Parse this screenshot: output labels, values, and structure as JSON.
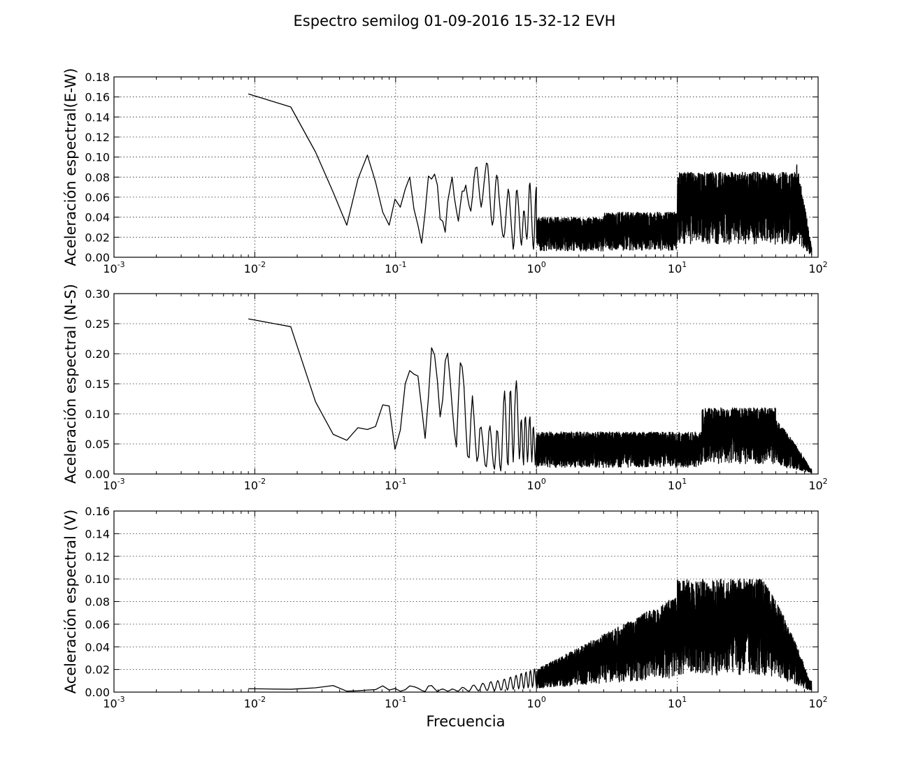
{
  "figure": {
    "title": "Espectro semilog 01-09-2016 15-32-12 EVH",
    "xlabel": "Frecuencia"
  },
  "chart_data": [
    {
      "type": "line",
      "xscale": "log",
      "xlim": [
        0.001,
        100
      ],
      "ylim": [
        0,
        0.18
      ],
      "yticks": [
        0.0,
        0.02,
        0.04,
        0.06,
        0.08,
        0.1,
        0.12,
        0.14,
        0.16,
        0.18
      ],
      "ytick_labels": [
        "0.00",
        "0.02",
        "0.04",
        "0.06",
        "0.08",
        "0.10",
        "0.12",
        "0.14",
        "0.16",
        "0.18"
      ],
      "ylabel": "Aceleración espectral(E-W)",
      "xlabel": "",
      "grid": true,
      "series": [
        {
          "x": [
            0.009,
            0.018,
            0.027,
            0.036,
            0.045,
            0.054,
            0.063,
            0.072,
            0.081,
            0.09,
            0.099,
            0.108,
            0.117,
            0.126,
            0.135,
            0.144,
            0.153,
            0.162,
            0.171,
            0.18,
            0.189,
            0.198,
            0.207,
            0.216,
            0.225,
            0.234,
            0.243,
            0.252,
            0.261,
            0.27,
            0.279,
            0.288,
            0.297,
            0.306,
            0.315,
            0.324,
            0.333,
            0.342,
            0.351,
            0.36,
            0.369,
            0.378,
            0.387,
            0.396,
            0.405,
            0.414,
            0.423,
            0.432,
            0.441,
            0.45,
            0.459,
            0.468,
            0.477,
            0.486,
            0.495,
            0.504,
            0.513,
            0.522,
            0.531,
            0.54,
            0.549,
            0.558,
            0.567,
            0.576,
            0.585,
            0.594,
            0.603,
            0.612,
            0.621,
            0.63,
            0.639,
            0.648,
            0.657,
            0.666,
            0.675,
            0.684,
            0.693,
            0.702,
            0.711,
            0.72,
            0.729,
            0.738,
            0.747,
            0.756,
            0.765,
            0.774,
            0.783,
            0.792,
            0.801,
            0.81,
            0.819,
            0.828,
            0.837,
            0.846,
            0.855,
            0.864,
            0.873,
            0.882,
            0.891,
            0.9,
            0.909,
            0.918,
            0.927,
            0.936,
            0.945,
            0.954,
            0.963,
            0.972,
            0.981,
            0.99,
            0.999
          ],
          "y": [
            0.163,
            0.15,
            0.105,
            0.065,
            0.032,
            0.078,
            0.102,
            0.075,
            0.045,
            0.032,
            0.058,
            0.05,
            0.068,
            0.08,
            0.048,
            0.032,
            0.014,
            0.045,
            0.081,
            0.078,
            0.083,
            0.072,
            0.038,
            0.036,
            0.025,
            0.055,
            0.068,
            0.08,
            0.06,
            0.047,
            0.036,
            0.052,
            0.066,
            0.066,
            0.072,
            0.06,
            0.051,
            0.046,
            0.06,
            0.078,
            0.089,
            0.09,
            0.075,
            0.06,
            0.05,
            0.058,
            0.072,
            0.084,
            0.094,
            0.093,
            0.078,
            0.058,
            0.04,
            0.032,
            0.037,
            0.055,
            0.074,
            0.082,
            0.078,
            0.064,
            0.052,
            0.042,
            0.03,
            0.022,
            0.02,
            0.024,
            0.035,
            0.048,
            0.06,
            0.068,
            0.064,
            0.052,
            0.04,
            0.028,
            0.018,
            0.008,
            0.014,
            0.03,
            0.05,
            0.066,
            0.067,
            0.06,
            0.05,
            0.038,
            0.026,
            0.016,
            0.012,
            0.02,
            0.034,
            0.046,
            0.046,
            0.04,
            0.03,
            0.022,
            0.018,
            0.024,
            0.04,
            0.058,
            0.072,
            0.074,
            0.064,
            0.05,
            0.036,
            0.022,
            0.012,
            0.008,
            0.018,
            0.036,
            0.054,
            0.066,
            0.07
          ]
        }
      ]
    },
    {
      "type": "line",
      "xscale": "log",
      "xlim": [
        0.001,
        100
      ],
      "ylim": [
        0,
        0.3
      ],
      "yticks": [
        0.0,
        0.05,
        0.1,
        0.15,
        0.2,
        0.25,
        0.3
      ],
      "ytick_labels": [
        "0.00",
        "0.05",
        "0.10",
        "0.15",
        "0.20",
        "0.25",
        "0.30"
      ],
      "ylabel": "Aceleración espectral (N-S)",
      "xlabel": "",
      "grid": true,
      "series": [
        {
          "x": [
            0.009,
            0.018,
            0.027,
            0.036,
            0.045,
            0.054,
            0.063,
            0.072,
            0.081,
            0.09,
            0.099,
            0.108,
            0.117,
            0.126,
            0.135,
            0.144,
            0.153,
            0.162,
            0.171,
            0.18,
            0.189,
            0.198,
            0.207,
            0.216,
            0.225,
            0.234,
            0.243,
            0.252,
            0.261,
            0.27,
            0.279,
            0.288,
            0.297,
            0.306,
            0.315,
            0.324,
            0.333,
            0.342,
            0.351,
            0.36,
            0.369,
            0.378,
            0.387,
            0.396,
            0.405,
            0.414,
            0.423,
            0.432,
            0.441,
            0.45,
            0.459,
            0.468,
            0.477,
            0.486,
            0.495,
            0.504,
            0.513,
            0.522,
            0.531,
            0.54,
            0.549,
            0.558,
            0.567,
            0.576,
            0.585,
            0.594,
            0.603,
            0.612,
            0.621,
            0.63,
            0.639,
            0.648,
            0.657,
            0.666,
            0.675,
            0.684,
            0.693,
            0.702,
            0.711,
            0.72,
            0.729,
            0.738,
            0.747,
            0.756,
            0.765,
            0.774,
            0.783,
            0.792,
            0.801,
            0.81,
            0.819,
            0.828,
            0.837,
            0.846,
            0.855,
            0.864,
            0.873,
            0.882,
            0.891,
            0.9,
            0.909,
            0.918,
            0.927,
            0.936,
            0.945,
            0.954,
            0.963,
            0.972,
            0.981,
            0.99,
            0.999
          ],
          "y": [
            0.258,
            0.245,
            0.12,
            0.066,
            0.056,
            0.077,
            0.074,
            0.079,
            0.115,
            0.113,
            0.041,
            0.073,
            0.15,
            0.172,
            0.166,
            0.163,
            0.11,
            0.059,
            0.128,
            0.21,
            0.198,
            0.155,
            0.095,
            0.124,
            0.188,
            0.201,
            0.16,
            0.112,
            0.07,
            0.045,
            0.122,
            0.185,
            0.178,
            0.145,
            0.08,
            0.03,
            0.027,
            0.09,
            0.13,
            0.095,
            0.05,
            0.021,
            0.03,
            0.075,
            0.078,
            0.06,
            0.035,
            0.015,
            0.012,
            0.033,
            0.07,
            0.08,
            0.062,
            0.035,
            0.015,
            0.008,
            0.032,
            0.072,
            0.07,
            0.045,
            0.015,
            0.005,
            0.028,
            0.078,
            0.12,
            0.138,
            0.11,
            0.062,
            0.02,
            0.015,
            0.068,
            0.135,
            0.138,
            0.1,
            0.05,
            0.02,
            0.05,
            0.11,
            0.14,
            0.155,
            0.135,
            0.095,
            0.05,
            0.025,
            0.04,
            0.085,
            0.09,
            0.065,
            0.03,
            0.015,
            0.05,
            0.092,
            0.095,
            0.075,
            0.04,
            0.02,
            0.035,
            0.07,
            0.09,
            0.095,
            0.07,
            0.04,
            0.02,
            0.038,
            0.075,
            0.078,
            0.06,
            0.035,
            0.015,
            0.035,
            0.06
          ]
        }
      ]
    },
    {
      "type": "line",
      "xscale": "log",
      "xlim": [
        0.001,
        100
      ],
      "ylim": [
        0,
        0.16
      ],
      "yticks": [
        0.0,
        0.02,
        0.04,
        0.06,
        0.08,
        0.1,
        0.12,
        0.14,
        0.16
      ],
      "ytick_labels": [
        "0.00",
        "0.02",
        "0.04",
        "0.06",
        "0.08",
        "0.10",
        "0.12",
        "0.14",
        "0.16"
      ],
      "ylabel": "Aceleración espectral (V)",
      "xlabel": "Frecuencia",
      "grid": true,
      "series": [
        {
          "x": [
            0.009,
            0.018,
            0.027,
            0.036,
            0.045,
            0.054,
            0.063,
            0.072,
            0.081,
            0.09,
            0.099,
            0.108,
            0.117,
            0.126,
            0.135,
            0.144,
            0.153,
            0.162,
            0.171,
            0.18,
            0.189,
            0.198,
            0.207,
            0.216,
            0.225,
            0.234,
            0.243,
            0.252,
            0.261,
            0.27,
            0.279,
            0.288,
            0.297,
            0.306,
            0.315,
            0.324,
            0.333,
            0.342,
            0.351,
            0.36,
            0.369,
            0.378,
            0.387,
            0.396,
            0.405,
            0.414,
            0.423,
            0.432,
            0.441,
            0.45,
            0.459,
            0.468,
            0.477,
            0.486,
            0.495,
            0.504,
            0.513,
            0.522,
            0.531,
            0.54,
            0.549,
            0.558,
            0.567,
            0.576,
            0.585,
            0.594,
            0.603,
            0.612,
            0.621,
            0.63,
            0.639,
            0.648,
            0.657,
            0.666,
            0.675,
            0.684,
            0.693,
            0.702,
            0.711,
            0.72,
            0.729,
            0.738,
            0.747,
            0.756,
            0.765,
            0.774,
            0.783,
            0.792,
            0.801,
            0.81,
            0.819,
            0.828,
            0.837,
            0.846,
            0.855,
            0.864,
            0.873,
            0.882,
            0.891,
            0.9,
            0.909,
            0.918,
            0.927,
            0.936,
            0.945,
            0.954,
            0.963,
            0.972,
            0.981,
            0.99,
            0.999
          ],
          "y": [
            0.003,
            0.0025,
            0.0038,
            0.0058,
            0.0008,
            0.0012,
            0.0018,
            0.0022,
            0.0055,
            0.0018,
            0.0032,
            0.0008,
            0.0021,
            0.0055,
            0.0048,
            0.0035,
            0.0015,
            0.0005,
            0.0054,
            0.0058,
            0.003,
            0.0004,
            0.002,
            0.0028,
            0.0018,
            0.0008,
            0.0015,
            0.0028,
            0.0022,
            0.0012,
            0.0008,
            0.0025,
            0.0042,
            0.0038,
            0.0025,
            0.0012,
            0.0008,
            0.0028,
            0.0055,
            0.0062,
            0.0048,
            0.0025,
            0.001,
            0.0022,
            0.0055,
            0.0078,
            0.0072,
            0.0045,
            0.0018,
            0.0015,
            0.0045,
            0.0085,
            0.0092,
            0.0065,
            0.0028,
            0.0012,
            0.0035,
            0.008,
            0.0102,
            0.0085,
            0.0045,
            0.0018,
            0.0022,
            0.0065,
            0.0108,
            0.0115,
            0.0085,
            0.0042,
            0.0018,
            0.0035,
            0.0085,
            0.0128,
            0.0132,
            0.0098,
            0.005,
            0.0025,
            0.0045,
            0.0098,
            0.0142,
            0.0148,
            0.0112,
            0.0062,
            0.0028,
            0.0048,
            0.0105,
            0.0158,
            0.0165,
            0.0125,
            0.0068,
            0.0032,
            0.0052,
            0.0112,
            0.0168,
            0.0178,
            0.0135,
            0.0075,
            0.0038,
            0.0058,
            0.012,
            0.0182,
            0.0192,
            0.0148,
            0.0085,
            0.0042,
            0.0062,
            0.0128,
            0.0195,
            0.0205,
            0.0158,
            0.0092,
            0.005
          ]
        }
      ]
    }
  ]
}
